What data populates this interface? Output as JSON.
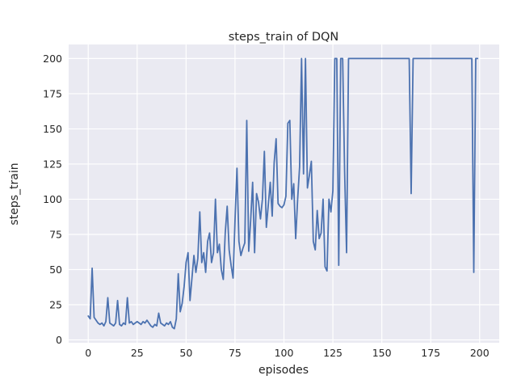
{
  "figure": {
    "title": "steps_train of DQN",
    "xlabel": "episodes",
    "ylabel": "steps_train"
  },
  "chart_data": {
    "type": "line",
    "title": "steps_train of DQN",
    "xlabel": "episodes",
    "ylabel": "steps_train",
    "legend": "none",
    "grid": true,
    "plot_bg": "#eaeaf2",
    "grid_color": "#ffffff",
    "line_color": "#4c72b0",
    "xlim": [
      -10,
      210
    ],
    "ylim": [
      -2,
      210
    ],
    "x_ticks": [
      0,
      25,
      50,
      75,
      100,
      125,
      150,
      175,
      200
    ],
    "y_ticks": [
      0,
      25,
      50,
      75,
      100,
      125,
      150,
      175,
      200
    ],
    "x_start": 0,
    "x_step": 1,
    "series_name": "steps_train",
    "values": [
      17,
      15,
      51,
      16,
      14,
      12,
      11,
      12,
      10,
      13,
      30,
      12,
      11,
      10,
      12,
      28,
      11,
      10,
      12,
      11,
      30,
      12,
      13,
      11,
      12,
      13,
      12,
      11,
      13,
      12,
      14,
      12,
      10,
      9,
      11,
      10,
      19,
      12,
      11,
      10,
      12,
      11,
      13,
      9,
      8,
      15,
      47,
      20,
      26,
      38,
      55,
      62,
      28,
      44,
      60,
      48,
      58,
      91,
      55,
      62,
      48,
      70,
      76,
      55,
      62,
      100,
      62,
      68,
      50,
      43,
      76,
      95,
      64,
      53,
      44,
      85,
      122,
      70,
      60,
      65,
      69,
      156,
      63,
      85,
      112,
      62,
      104,
      98,
      86,
      100,
      134,
      80,
      96,
      112,
      88,
      126,
      143,
      97,
      95,
      94,
      96,
      102,
      154,
      156,
      100,
      111,
      72,
      100,
      123,
      200,
      118,
      200,
      108,
      117,
      127,
      70,
      64,
      92,
      72,
      76,
      100,
      52,
      49,
      100,
      91,
      106,
      200,
      200,
      53,
      200,
      200,
      120,
      62,
      200,
      200,
      200,
      200,
      200,
      200,
      200,
      200,
      200,
      200,
      200,
      200,
      200,
      200,
      200,
      200,
      200,
      200,
      200,
      200,
      200,
      200,
      200,
      200,
      200,
      200,
      200,
      200,
      200,
      200,
      200,
      200,
      104,
      200,
      200,
      200,
      200,
      200,
      200,
      200,
      200,
      200,
      200,
      200,
      200,
      200,
      200,
      200,
      200,
      200,
      200,
      200,
      200,
      200,
      200,
      200,
      200,
      200,
      200,
      200,
      200,
      200,
      200,
      200,
      48,
      200,
      200
    ]
  }
}
